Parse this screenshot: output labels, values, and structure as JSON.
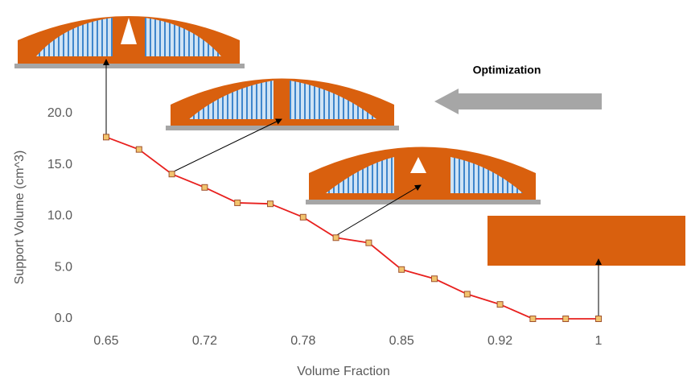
{
  "chart_data": {
    "type": "line",
    "x_label": "Volume Fraction",
    "y_label": "Support Volume (cm^3)",
    "annotation": "Optimization",
    "categories": [
      "0.65",
      null,
      null,
      "0.72",
      null,
      null,
      "0.78",
      null,
      null,
      "0.85",
      null,
      null,
      "0.92",
      null,
      null,
      "1"
    ],
    "series": [
      {
        "color": "#e8201e",
        "values": [
          17.7,
          16.5,
          14.1,
          12.8,
          11.3,
          11.2,
          9.9,
          7.9,
          7.4,
          4.8,
          3.9,
          2.4,
          1.4,
          0,
          0,
          0
        ]
      }
    ],
    "ylim": [
      0,
      20
    ],
    "yticks": [
      {
        "value": 0,
        "label": "0.0"
      },
      {
        "value": 5,
        "label": "5.0"
      },
      {
        "value": 10,
        "label": "10.0"
      },
      {
        "value": 15,
        "label": "15.0"
      },
      {
        "value": 20,
        "label": "20.0"
      }
    ]
  }
}
